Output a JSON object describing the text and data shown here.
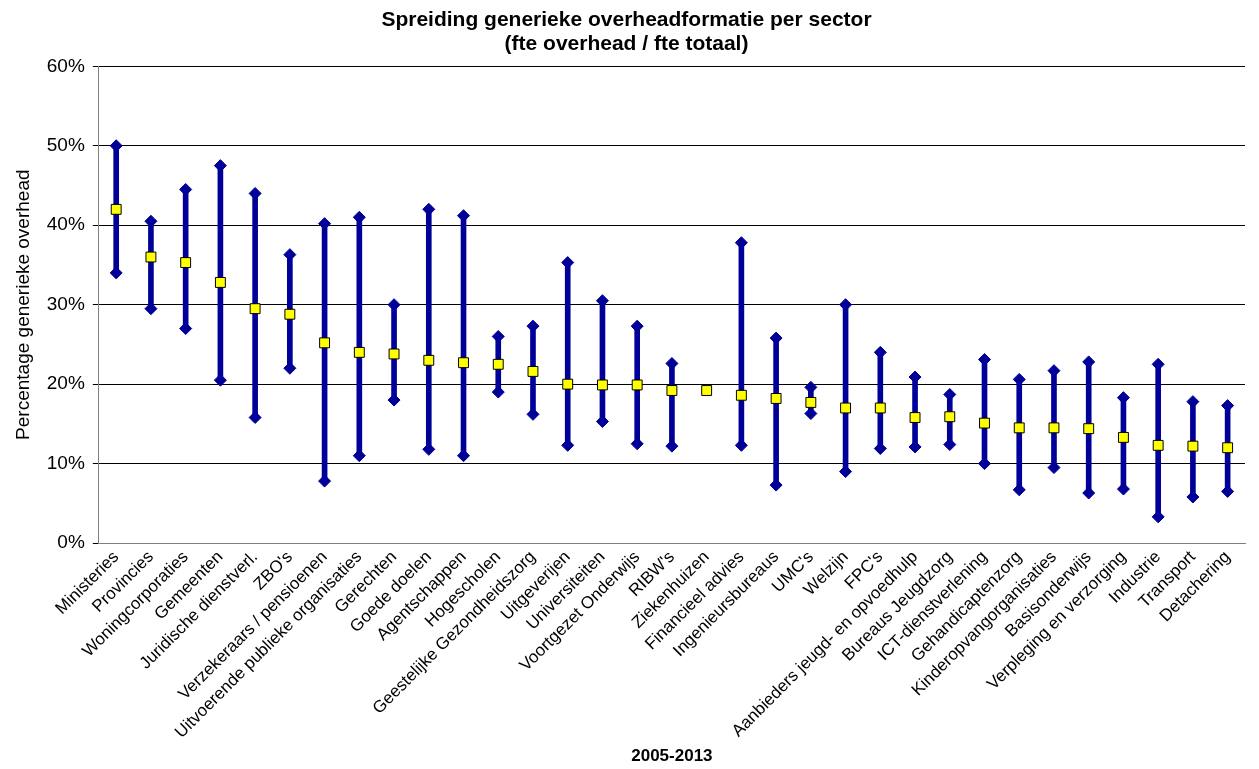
{
  "chart_data": {
    "type": "scatter",
    "title": "Spreiding generieke overheadformatie per sector",
    "subtitle": "(fte overhead / fte totaal)",
    "xlabel": "2005-2013",
    "ylabel": "Percentage generieke overhead",
    "categories": [
      "Ministeries",
      "Provincies",
      "Woningcorporaties",
      "Gemeenten",
      "Juridische dienstverl.",
      "ZBO's",
      "Verzekeraars / pensioenen",
      "Uitvoerende publieke organisaties",
      "Gerechten",
      "Goede doelen",
      "Agentschappen",
      "Hogescholen",
      "Geestelijke Gezondheidszorg",
      "Uitgeverijen",
      "Universiteiten",
      "Voortgezet Onderwijs",
      "RIBW's",
      "Ziekenhuizen",
      "Financieel advies",
      "Ingenieursbureaus",
      "UMC's",
      "Welzijn",
      "FPC's",
      "Aanbieders jeugd- en opvoedhulp",
      "Bureaus Jeugdzorg",
      "ICT-dienstverlening",
      "Gehandicaptenzorg",
      "Kinderopvangorganisaties",
      "Basisonderwijs",
      "Verpleging en verzorging",
      "Industrie",
      "Transport",
      "Detachering"
    ],
    "series": [
      {
        "type": "bar",
        "color": "#000099",
        "base": [
          34,
          29.5,
          27,
          20.5,
          15.8,
          22,
          7.8,
          11,
          18,
          11.8,
          11,
          19,
          16.2,
          12.3,
          15.3,
          12.5,
          12.2,
          null,
          12.3,
          7.3,
          16.3,
          9,
          11.9,
          12.1,
          12.4,
          10,
          6.7,
          9.5,
          6.3,
          6.8,
          3.3,
          5.8,
          6.5
        ],
        "values": [
          16,
          11,
          17.5,
          27,
          28.2,
          14.3,
          32.4,
          30,
          12,
          30.2,
          30.2,
          7,
          11.1,
          23,
          15.2,
          14.8,
          10.4,
          null,
          25.5,
          18.5,
          3.3,
          21,
          12.1,
          8.8,
          6.3,
          13.1,
          13.9,
          12.2,
          16.5,
          11.5,
          19.2,
          12,
          10.8
        ]
      },
      {
        "color": "#000099",
        "marker": "diamond",
        "values": [
          50,
          40.5,
          44.5,
          47.5,
          44,
          36.3,
          40.2,
          41,
          30,
          42,
          41.2,
          26,
          27.3,
          35.3,
          30.5,
          27.3,
          22.6,
          null,
          37.8,
          25.8,
          19.6,
          30,
          24,
          20.9,
          18.7,
          23.1,
          20.6,
          21.7,
          22.8,
          18.3,
          22.5,
          17.8,
          17.3
        ]
      },
      {
        "color": "#000099",
        "marker": "diamond",
        "values": [
          34,
          29.5,
          27,
          20.5,
          15.8,
          22,
          7.8,
          11,
          18,
          11.8,
          11,
          19,
          16.2,
          12.3,
          15.3,
          12.5,
          12.2,
          null,
          12.3,
          7.3,
          16.3,
          9,
          11.9,
          12.1,
          12.4,
          10,
          6.7,
          9.5,
          6.3,
          6.8,
          3.3,
          5.8,
          6.5
        ]
      },
      {
        "color": "#ffff00",
        "values": [
          42,
          36,
          35.3,
          32.8,
          29.5,
          28.8,
          25.2,
          24,
          23.8,
          23,
          22.7,
          22.5,
          21.6,
          20,
          19.9,
          19.9,
          19.2,
          19.2,
          18.6,
          18.2,
          17.7,
          17,
          17,
          15.8,
          15.9,
          15.1,
          14.5,
          14.5,
          14.4,
          13.3,
          12.3,
          12.2,
          12
        ]
      }
    ],
    "ylim": [
      0,
      60
    ],
    "yticks": [
      {
        "value": 0,
        "label": "0%"
      },
      {
        "value": 10,
        "label": "10%"
      },
      {
        "value": 20,
        "label": "20%"
      },
      {
        "value": 30,
        "label": "30%"
      },
      {
        "value": 40,
        "label": "40%"
      },
      {
        "value": 50,
        "label": "50%"
      },
      {
        "value": 60,
        "label": "60%"
      }
    ],
    "grid": "y",
    "legend": false,
    "marker": "square"
  }
}
